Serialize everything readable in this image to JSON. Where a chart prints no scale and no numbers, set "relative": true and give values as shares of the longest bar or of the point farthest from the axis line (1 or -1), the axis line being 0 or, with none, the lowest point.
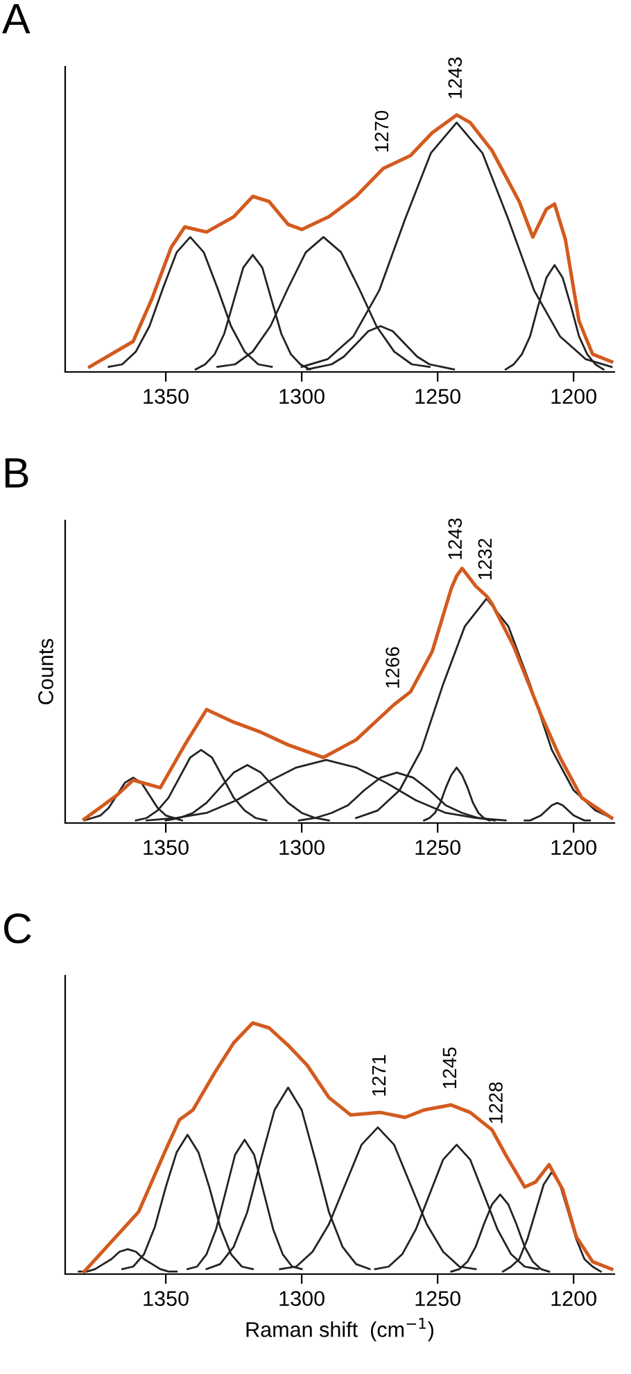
{
  "chart_data": [
    {
      "type": "line",
      "title": "A",
      "relative": true,
      "xlim": [
        1387,
        1185
      ],
      "xticks": [
        1350,
        1300,
        1250,
        1200
      ],
      "tick_labels": "x",
      "grid": false,
      "marker": "none",
      "line_style": "solid",
      "annotations": [
        {
          "text": "1270",
          "x": 1270,
          "y": 0.79
        },
        {
          "text": "1243",
          "x": 1243,
          "y": 1.0
        }
      ],
      "series": [
        {
          "color": "#222222",
          "x": [
            1371,
            1366,
            1361,
            1356,
            1351,
            1346,
            1341,
            1336,
            1331,
            1326,
            1321,
            1316,
            1311
          ],
          "values": [
            0.01,
            0.02,
            0.07,
            0.17,
            0.32,
            0.46,
            0.52,
            0.46,
            0.32,
            0.17,
            0.07,
            0.02,
            0.01
          ]
        },
        {
          "color": "#222222",
          "x": [
            1339,
            1335.5,
            1332,
            1328.5,
            1325,
            1321.5,
            1318,
            1314.5,
            1311,
            1307.5,
            1304,
            1300.5,
            1297
          ],
          "values": [
            0,
            0.02,
            0.06,
            0.14,
            0.27,
            0.4,
            0.45,
            0.4,
            0.27,
            0.14,
            0.06,
            0.02,
            0
          ]
        },
        {
          "color": "#222222",
          "x": [
            1331,
            1324.5,
            1318,
            1311.5,
            1305,
            1298.5,
            1292,
            1285.5,
            1279,
            1272.5,
            1266,
            1259.5,
            1253
          ],
          "values": [
            0.01,
            0.02,
            0.07,
            0.17,
            0.32,
            0.46,
            0.52,
            0.46,
            0.32,
            0.17,
            0.07,
            0.02,
            0.01
          ]
        },
        {
          "color": "#222222",
          "x": [
            1298,
            1293.5,
            1289,
            1284.5,
            1280,
            1275.5,
            1271,
            1266.5,
            1262,
            1257.5,
            1253,
            1248.5,
            1244
          ],
          "values": [
            0,
            0.01,
            0.02,
            0.05,
            0.1,
            0.15,
            0.17,
            0.15,
            0.1,
            0.05,
            0.02,
            0.01,
            0
          ]
        },
        {
          "color": "#222222",
          "x": [
            1300,
            1290.5,
            1281,
            1271.5,
            1262,
            1252.5,
            1243,
            1233.5,
            1224,
            1214.5,
            1205,
            1195.5,
            1186
          ],
          "values": [
            0.01,
            0.04,
            0.13,
            0.31,
            0.59,
            0.85,
            0.97,
            0.85,
            0.59,
            0.31,
            0.13,
            0.04,
            0.01
          ]
        },
        {
          "color": "#222222",
          "x": [
            1225,
            1222,
            1219,
            1216,
            1213,
            1210,
            1207,
            1204,
            1201,
            1198,
            1195,
            1192,
            1189
          ],
          "values": [
            0,
            0.02,
            0.06,
            0.13,
            0.25,
            0.36,
            0.41,
            0.36,
            0.25,
            0.13,
            0.06,
            0.02,
            0
          ]
        },
        {
          "color": "#d35a1e",
          "x": [
            1378,
            1362,
            1355,
            1348,
            1343,
            1335,
            1325,
            1318,
            1312,
            1305,
            1300,
            1290,
            1280,
            1270,
            1260,
            1252,
            1243,
            1238,
            1230,
            1220,
            1215,
            1210,
            1207,
            1203,
            1198,
            1193,
            1186
          ],
          "values": [
            0.01,
            0.11,
            0.28,
            0.48,
            0.56,
            0.54,
            0.6,
            0.68,
            0.66,
            0.57,
            0.55,
            0.6,
            0.68,
            0.79,
            0.84,
            0.93,
            1.0,
            0.97,
            0.86,
            0.66,
            0.52,
            0.63,
            0.65,
            0.51,
            0.19,
            0.06,
            0.03
          ]
        }
      ]
    },
    {
      "type": "line",
      "title": "B",
      "ylabel": "Counts",
      "relative": true,
      "xlim": [
        1387,
        1185
      ],
      "xticks": [
        1350,
        1300,
        1250,
        1200
      ],
      "tick_labels": "x",
      "grid": false,
      "marker": "none",
      "line_style": "solid",
      "annotations": [
        {
          "text": "1266",
          "x": 1266,
          "y": 0.46
        },
        {
          "text": "1243",
          "x": 1243,
          "y": 0.97
        },
        {
          "text": "1232",
          "x": 1232,
          "y": 0.89
        }
      ],
      "series": [
        {
          "color": "#222222",
          "x": [
            1380,
            1377,
            1374,
            1371,
            1368,
            1365,
            1362,
            1359,
            1356,
            1353,
            1350,
            1347,
            1344
          ],
          "values": [
            0,
            0.01,
            0.02,
            0.05,
            0.1,
            0.15,
            0.17,
            0.15,
            0.1,
            0.05,
            0.02,
            0.01,
            0
          ]
        },
        {
          "color": "#222222",
          "x": [
            1361,
            1357,
            1353,
            1349,
            1345,
            1341,
            1337,
            1333,
            1329,
            1325,
            1321,
            1317,
            1313
          ],
          "values": [
            0,
            0.01,
            0.04,
            0.09,
            0.17,
            0.25,
            0.28,
            0.25,
            0.17,
            0.09,
            0.04,
            0.01,
            0
          ]
        },
        {
          "color": "#222222",
          "x": [
            1350,
            1345,
            1340,
            1335,
            1330,
            1325,
            1320,
            1315,
            1310,
            1305,
            1300,
            1295,
            1290
          ],
          "values": [
            0,
            0.01,
            0.03,
            0.07,
            0.13,
            0.19,
            0.22,
            0.19,
            0.13,
            0.07,
            0.03,
            0.01,
            0
          ]
        },
        {
          "color": "#222222",
          "x": [
            1357,
            1346,
            1335,
            1324,
            1313,
            1302,
            1291,
            1280,
            1269,
            1258,
            1247,
            1236,
            1225
          ],
          "values": [
            0,
            0.01,
            0.03,
            0.08,
            0.15,
            0.21,
            0.24,
            0.21,
            0.15,
            0.08,
            0.03,
            0.01,
            0
          ]
        },
        {
          "color": "#222222",
          "x": [
            1301,
            1295,
            1289,
            1283,
            1277,
            1271,
            1265,
            1259,
            1253,
            1247,
            1241,
            1235,
            1229
          ],
          "values": [
            0,
            0.01,
            0.03,
            0.06,
            0.12,
            0.17,
            0.19,
            0.17,
            0.12,
            0.06,
            0.03,
            0.01,
            0
          ]
        },
        {
          "color": "#222222",
          "x": [
            1255,
            1253,
            1251,
            1249,
            1247,
            1245,
            1243,
            1241,
            1239,
            1237,
            1235,
            1233,
            1231
          ],
          "values": [
            0,
            0.01,
            0.03,
            0.07,
            0.13,
            0.18,
            0.21,
            0.18,
            0.13,
            0.07,
            0.03,
            0.01,
            0
          ]
        },
        {
          "color": "#222222",
          "x": [
            1280,
            1272,
            1264,
            1256,
            1248,
            1240,
            1232,
            1224,
            1216,
            1208,
            1200,
            1192,
            1186
          ],
          "values": [
            0.01,
            0.04,
            0.12,
            0.28,
            0.54,
            0.77,
            0.88,
            0.77,
            0.54,
            0.28,
            0.12,
            0.04,
            0.01
          ]
        },
        {
          "color": "#222222",
          "x": [
            1218,
            1216,
            1214,
            1212,
            1210,
            1208,
            1206,
            1204,
            1202,
            1200,
            1198,
            1196,
            1194
          ],
          "values": [
            0,
            0,
            0.01,
            0.02,
            0.04,
            0.06,
            0.07,
            0.06,
            0.04,
            0.02,
            0.01,
            0,
            0
          ]
        },
        {
          "color": "#d35a1e",
          "x": [
            1380,
            1368,
            1362,
            1352,
            1343,
            1335,
            1325,
            1315,
            1305,
            1292,
            1280,
            1270,
            1266,
            1260,
            1252,
            1245,
            1243,
            1241,
            1236,
            1232,
            1230,
            1222,
            1212,
            1205,
            1197,
            1186
          ],
          "values": [
            0.005,
            0.1,
            0.16,
            0.13,
            0.3,
            0.44,
            0.39,
            0.35,
            0.3,
            0.25,
            0.32,
            0.42,
            0.46,
            0.51,
            0.67,
            0.92,
            0.97,
            1.0,
            0.93,
            0.89,
            0.86,
            0.69,
            0.42,
            0.25,
            0.09,
            0.01
          ]
        }
      ]
    },
    {
      "type": "line",
      "title": "C",
      "xlabel": "Raman shift  (cm$^{−1}$)",
      "relative": true,
      "xlim": [
        1387,
        1185
      ],
      "xticks": [
        1350,
        1300,
        1250,
        1200
      ],
      "tick_labels": "x",
      "grid": false,
      "marker": "none",
      "line_style": "solid",
      "annotations": [
        {
          "text": "1271",
          "x": 1271,
          "y": 0.64
        },
        {
          "text": "1245",
          "x": 1245,
          "y": 0.67
        },
        {
          "text": "1228",
          "x": 1228,
          "y": 0.53
        }
      ],
      "series": [
        {
          "color": "#222222",
          "x": [
            1382,
            1379,
            1376,
            1373,
            1370,
            1367,
            1364,
            1361,
            1358,
            1355,
            1352,
            1349,
            1346
          ],
          "values": [
            0,
            0,
            0.01,
            0.03,
            0.05,
            0.08,
            0.09,
            0.08,
            0.05,
            0.03,
            0.01,
            0,
            0
          ]
        },
        {
          "color": "#222222",
          "x": [
            1366,
            1362,
            1358,
            1354,
            1350,
            1346,
            1342,
            1338,
            1334,
            1330,
            1326,
            1322,
            1318
          ],
          "values": [
            0.01,
            0.02,
            0.07,
            0.18,
            0.34,
            0.48,
            0.55,
            0.48,
            0.34,
            0.18,
            0.07,
            0.02,
            0.01
          ]
        },
        {
          "color": "#222222",
          "x": [
            1342,
            1338.5,
            1335,
            1331.5,
            1328,
            1324.5,
            1321,
            1317.5,
            1314,
            1310.5,
            1307,
            1303.5,
            1300
          ],
          "values": [
            0.01,
            0.02,
            0.07,
            0.17,
            0.32,
            0.47,
            0.53,
            0.47,
            0.32,
            0.17,
            0.07,
            0.02,
            0.01
          ]
        },
        {
          "color": "#222222",
          "x": [
            1335,
            1330,
            1325,
            1320,
            1315,
            1310,
            1305,
            1300,
            1295,
            1290,
            1285,
            1280,
            1275
          ],
          "values": [
            0.01,
            0.03,
            0.1,
            0.24,
            0.45,
            0.65,
            0.74,
            0.65,
            0.45,
            0.24,
            0.1,
            0.03,
            0.01
          ]
        },
        {
          "color": "#222222",
          "x": [
            1308,
            1302,
            1296,
            1290,
            1284,
            1278,
            1272,
            1266,
            1260,
            1254,
            1248,
            1242,
            1236
          ],
          "values": [
            0.01,
            0.02,
            0.08,
            0.19,
            0.35,
            0.51,
            0.58,
            0.51,
            0.35,
            0.19,
            0.08,
            0.02,
            0.01
          ]
        },
        {
          "color": "#222222",
          "x": [
            1273,
            1268,
            1263,
            1258,
            1253,
            1248,
            1243,
            1238,
            1233,
            1228,
            1223,
            1218,
            1213
          ],
          "values": [
            0.01,
            0.02,
            0.07,
            0.17,
            0.31,
            0.45,
            0.51,
            0.45,
            0.31,
            0.17,
            0.07,
            0.02,
            0.01
          ]
        },
        {
          "color": "#222222",
          "x": [
            1245,
            1242,
            1239,
            1236,
            1233,
            1230,
            1227,
            1224,
            1221,
            1218,
            1215,
            1212,
            1209
          ],
          "values": [
            0,
            0.01,
            0.04,
            0.1,
            0.19,
            0.27,
            0.31,
            0.27,
            0.19,
            0.1,
            0.04,
            0.01,
            0
          ]
        },
        {
          "color": "#222222",
          "x": [
            1226,
            1223,
            1220,
            1217,
            1214,
            1211,
            1208,
            1205,
            1202,
            1199,
            1196,
            1193,
            1190
          ],
          "values": [
            0,
            0.02,
            0.05,
            0.13,
            0.24,
            0.35,
            0.4,
            0.35,
            0.24,
            0.13,
            0.05,
            0.02,
            0
          ]
        },
        {
          "color": "#d35a1e",
          "x": [
            1380,
            1370,
            1360,
            1350,
            1345,
            1340,
            1332,
            1325,
            1318,
            1312,
            1305,
            1298,
            1290,
            1282,
            1271,
            1262,
            1255,
            1245,
            1238,
            1230,
            1228,
            1225,
            1218,
            1214,
            1209,
            1204,
            1199,
            1193,
            1186
          ],
          "values": [
            0,
            0.12,
            0.24,
            0.49,
            0.61,
            0.65,
            0.8,
            0.92,
            1.0,
            0.98,
            0.91,
            0.83,
            0.7,
            0.63,
            0.64,
            0.62,
            0.65,
            0.67,
            0.64,
            0.57,
            0.53,
            0.47,
            0.34,
            0.36,
            0.43,
            0.33,
            0.14,
            0.04,
            0.01
          ]
        }
      ]
    }
  ]
}
